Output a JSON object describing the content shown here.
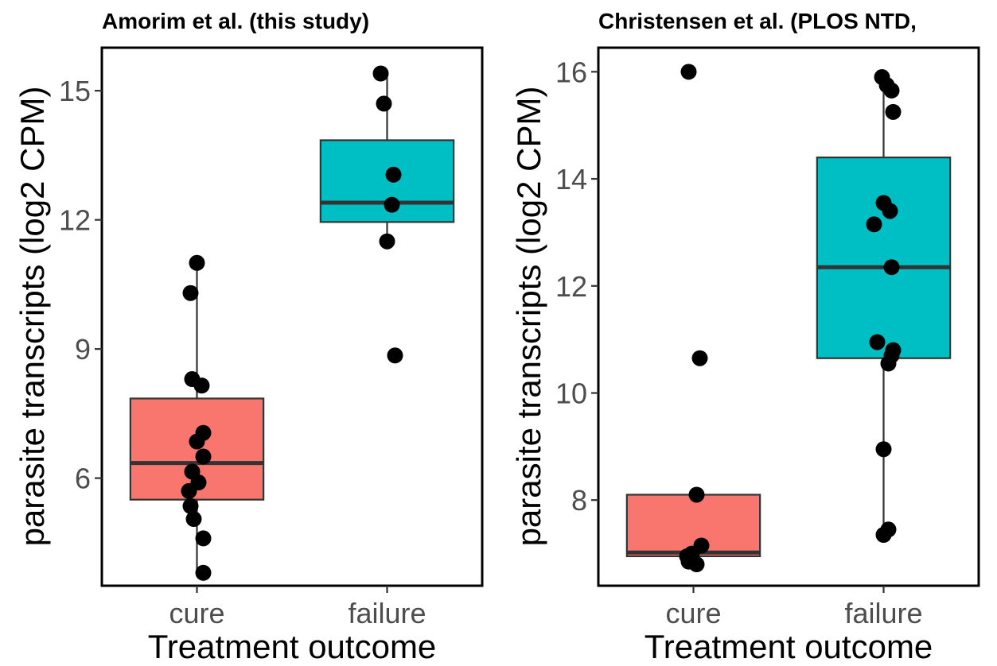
{
  "colors": {
    "cure": "#F8766D",
    "failure": "#00BFC4",
    "point": "#000000",
    "line": "#333333"
  },
  "chart_data": [
    {
      "type": "boxplot",
      "title": "Amorim et al. (this study)",
      "xlabel": "Treatment outcome",
      "ylabel": "parasite transcripts (log2 CPM)",
      "categories": [
        "cure",
        "failure"
      ],
      "ylim": [
        3.5,
        16.0
      ],
      "yticks": [
        6,
        9,
        12,
        15
      ],
      "grid": false,
      "legend": "none",
      "boxes": [
        {
          "category": "cure",
          "lower_whisker": 3.8,
          "q1": 5.5,
          "median": 6.35,
          "q3": 7.85,
          "upper_whisker": 11.0
        },
        {
          "category": "failure",
          "lower_whisker": 11.5,
          "q1": 11.95,
          "median": 12.4,
          "q3": 13.85,
          "upper_whisker": 15.4
        }
      ],
      "points": [
        {
          "category": "cure",
          "values": [
            11.0,
            10.3,
            8.3,
            8.15,
            7.05,
            6.85,
            6.5,
            6.15,
            5.9,
            5.7,
            5.35,
            5.05,
            4.6,
            3.8
          ]
        },
        {
          "category": "failure",
          "values": [
            15.4,
            14.7,
            13.05,
            12.35,
            11.5,
            8.85
          ]
        }
      ]
    },
    {
      "type": "boxplot",
      "title": "Christensen et al. (PLOS NTD,",
      "xlabel": "Treatment outcome",
      "ylabel": "parasite transcripts (log2 CPM)",
      "categories": [
        "cure",
        "failure"
      ],
      "ylim": [
        6.4,
        16.45
      ],
      "yticks": [
        8,
        10,
        12,
        14,
        16
      ],
      "grid": false,
      "legend": "none",
      "boxes": [
        {
          "category": "cure",
          "lower_whisker": 6.8,
          "q1": 6.95,
          "median": 7.02,
          "q3": 8.1,
          "upper_whisker": 8.1
        },
        {
          "category": "failure",
          "lower_whisker": 7.35,
          "q1": 10.65,
          "median": 12.35,
          "q3": 14.4,
          "upper_whisker": 15.9
        }
      ],
      "points": [
        {
          "category": "cure",
          "values": [
            16.0,
            10.65,
            8.1,
            7.15,
            7.0,
            6.95,
            6.85,
            6.8
          ]
        },
        {
          "category": "failure",
          "values": [
            15.9,
            15.75,
            15.65,
            15.25,
            13.55,
            13.4,
            13.15,
            12.35,
            10.95,
            10.8,
            10.7,
            10.55,
            8.95,
            7.45,
            7.35
          ]
        }
      ]
    }
  ]
}
